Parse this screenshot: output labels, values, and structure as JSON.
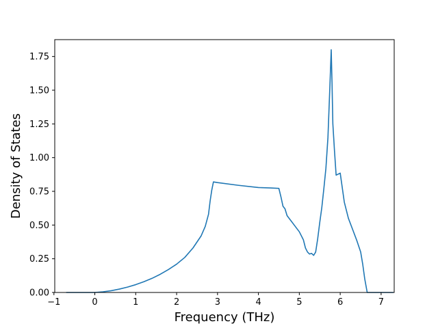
{
  "chart_data": {
    "type": "line",
    "xlabel": "Frequency (THz)",
    "ylabel": "Density of States",
    "xlim": [
      -0.98,
      7.32
    ],
    "ylim": [
      0.0,
      1.875
    ],
    "xticks": [
      -1,
      0,
      1,
      2,
      3,
      4,
      5,
      6,
      7
    ],
    "xtick_labels": [
      "−1",
      "0",
      "1",
      "2",
      "3",
      "4",
      "5",
      "6",
      "7"
    ],
    "yticks": [
      0.0,
      0.25,
      0.5,
      0.75,
      1.0,
      1.25,
      1.5,
      1.75
    ],
    "ytick_labels": [
      "0.00",
      "0.25",
      "0.50",
      "0.75",
      "1.00",
      "1.25",
      "1.50",
      "1.75"
    ],
    "grid": false,
    "series": [
      {
        "color": "#1f77b4",
        "x": [
          -0.7,
          -0.3,
          0.0,
          0.2,
          0.4,
          0.6,
          0.8,
          1.0,
          1.2,
          1.4,
          1.6,
          1.8,
          2.0,
          2.2,
          2.4,
          2.6,
          2.7,
          2.78,
          2.82,
          2.86,
          2.9,
          3.0,
          3.5,
          4.0,
          4.3,
          4.5,
          4.55,
          4.6,
          4.65,
          4.7,
          4.75,
          4.8,
          4.9,
          5.0,
          5.1,
          5.15,
          5.2,
          5.25,
          5.3,
          5.35,
          5.4,
          5.45,
          5.5,
          5.55,
          5.6,
          5.65,
          5.7,
          5.75,
          5.78,
          5.8,
          5.82,
          5.84,
          5.86,
          5.9,
          6.0,
          6.1,
          6.2,
          6.3,
          6.4,
          6.5,
          6.55,
          6.6,
          6.66,
          6.8,
          7.0,
          7.3
        ],
        "y": [
          0.0,
          0.0,
          0.0,
          0.005,
          0.013,
          0.025,
          0.04,
          0.058,
          0.08,
          0.105,
          0.135,
          0.17,
          0.21,
          0.26,
          0.33,
          0.42,
          0.49,
          0.58,
          0.68,
          0.76,
          0.82,
          0.815,
          0.795,
          0.778,
          0.775,
          0.772,
          0.71,
          0.64,
          0.62,
          0.57,
          0.55,
          0.53,
          0.49,
          0.45,
          0.39,
          0.33,
          0.3,
          0.285,
          0.29,
          0.275,
          0.3,
          0.4,
          0.52,
          0.63,
          0.77,
          0.92,
          1.15,
          1.55,
          1.8,
          1.55,
          1.25,
          1.15,
          1.05,
          0.87,
          0.885,
          0.67,
          0.55,
          0.47,
          0.39,
          0.3,
          0.21,
          0.1,
          0.0,
          0.0,
          0.0,
          0.0
        ]
      }
    ]
  }
}
